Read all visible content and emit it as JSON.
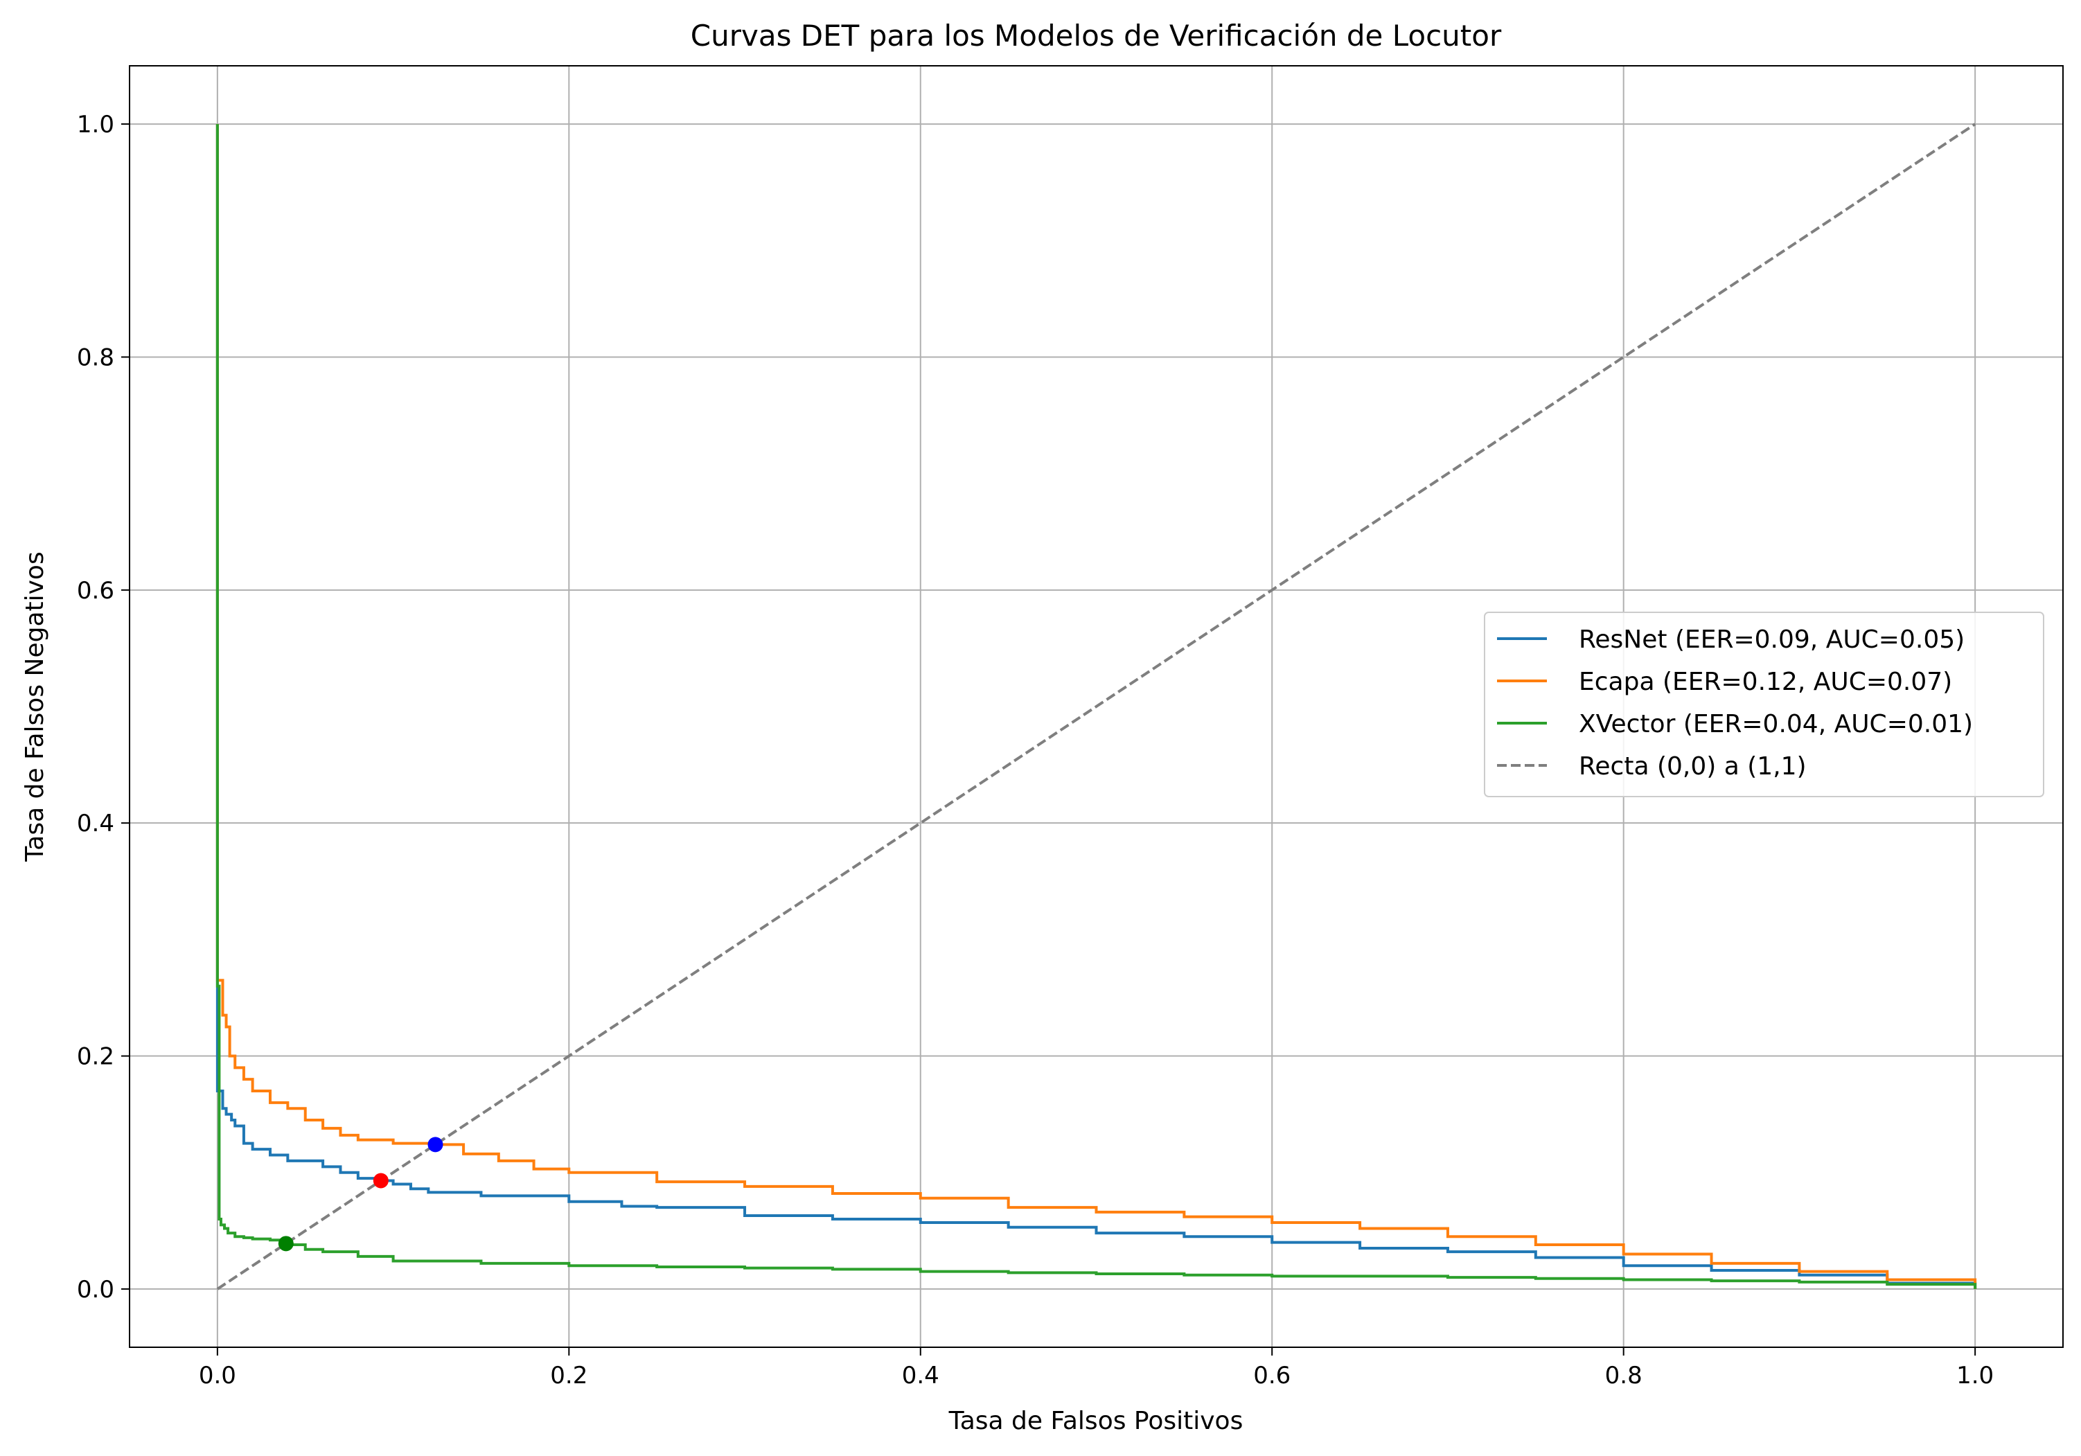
{
  "chart_data": {
    "type": "line",
    "title": "Curvas DET para los Modelos de Verificación de Locutor",
    "xlabel": "Tasa de Falsos Positivos",
    "ylabel": "Tasa de Falsos Negativos",
    "xlim": [
      -0.05,
      1.05
    ],
    "ylim": [
      -0.05,
      1.05
    ],
    "xticks": [
      "0.0",
      "0.2",
      "0.4",
      "0.6",
      "0.8",
      "1.0"
    ],
    "yticks": [
      "0.0",
      "0.2",
      "0.4",
      "0.6",
      "0.8",
      "1.0"
    ],
    "grid": true,
    "legend_position": "center-right",
    "series": [
      {
        "name": "ResNet (EER=0.09, AUC=0.05)",
        "color": "#1f77b4",
        "x": [
          0.0,
          0.0,
          0.002,
          0.003,
          0.005,
          0.008,
          0.01,
          0.015,
          0.02,
          0.03,
          0.04,
          0.06,
          0.07,
          0.08,
          0.093,
          0.1,
          0.11,
          0.12,
          0.15,
          0.2,
          0.23,
          0.25,
          0.3,
          0.35,
          0.4,
          0.45,
          0.5,
          0.55,
          0.6,
          0.65,
          0.7,
          0.75,
          0.8,
          0.85,
          0.9,
          0.95,
          1.0
        ],
        "y": [
          1.0,
          0.17,
          0.17,
          0.155,
          0.15,
          0.145,
          0.14,
          0.125,
          0.12,
          0.115,
          0.11,
          0.105,
          0.1,
          0.095,
          0.093,
          0.09,
          0.086,
          0.083,
          0.08,
          0.075,
          0.071,
          0.07,
          0.063,
          0.06,
          0.057,
          0.053,
          0.048,
          0.045,
          0.04,
          0.035,
          0.032,
          0.027,
          0.02,
          0.016,
          0.012,
          0.005,
          0.0
        ]
      },
      {
        "name": "Ecapa (EER=0.12, AUC=0.07)",
        "color": "#ff7f0e",
        "x": [
          0.0,
          0.0,
          0.003,
          0.005,
          0.007,
          0.01,
          0.015,
          0.02,
          0.03,
          0.04,
          0.05,
          0.06,
          0.07,
          0.08,
          0.1,
          0.124,
          0.14,
          0.16,
          0.18,
          0.2,
          0.25,
          0.3,
          0.35,
          0.4,
          0.45,
          0.5,
          0.55,
          0.6,
          0.65,
          0.7,
          0.75,
          0.8,
          0.85,
          0.9,
          0.95,
          1.0
        ],
        "y": [
          1.0,
          0.265,
          0.235,
          0.225,
          0.2,
          0.19,
          0.18,
          0.17,
          0.16,
          0.155,
          0.145,
          0.138,
          0.132,
          0.128,
          0.125,
          0.124,
          0.116,
          0.11,
          0.103,
          0.1,
          0.092,
          0.088,
          0.082,
          0.078,
          0.07,
          0.066,
          0.062,
          0.057,
          0.052,
          0.045,
          0.038,
          0.03,
          0.022,
          0.015,
          0.008,
          0.0
        ]
      },
      {
        "name": "XVector (EER=0.04, AUC=0.01)",
        "color": "#2ca02c",
        "x": [
          0.0,
          0.0,
          0.001,
          0.002,
          0.004,
          0.006,
          0.01,
          0.015,
          0.02,
          0.03,
          0.04,
          0.05,
          0.06,
          0.08,
          0.1,
          0.15,
          0.2,
          0.25,
          0.3,
          0.35,
          0.4,
          0.45,
          0.5,
          0.55,
          0.6,
          0.65,
          0.7,
          0.75,
          0.8,
          0.85,
          0.9,
          0.95,
          1.0
        ],
        "y": [
          1.0,
          0.26,
          0.06,
          0.055,
          0.052,
          0.048,
          0.045,
          0.044,
          0.043,
          0.042,
          0.038,
          0.034,
          0.032,
          0.028,
          0.024,
          0.022,
          0.02,
          0.019,
          0.018,
          0.017,
          0.015,
          0.014,
          0.013,
          0.012,
          0.011,
          0.011,
          0.01,
          0.009,
          0.008,
          0.007,
          0.006,
          0.004,
          0.0
        ]
      },
      {
        "name": "Recta (0,0) a (1,1)",
        "color": "#7f7f7f",
        "dashed": true,
        "x": [
          0.0,
          1.0
        ],
        "y": [
          0.0,
          1.0
        ]
      }
    ],
    "eer_points": [
      {
        "x": 0.093,
        "y": 0.093,
        "color": "#ff0000"
      },
      {
        "x": 0.124,
        "y": 0.124,
        "color": "#0000ff"
      },
      {
        "x": 0.039,
        "y": 0.039,
        "color": "#008000"
      }
    ]
  }
}
